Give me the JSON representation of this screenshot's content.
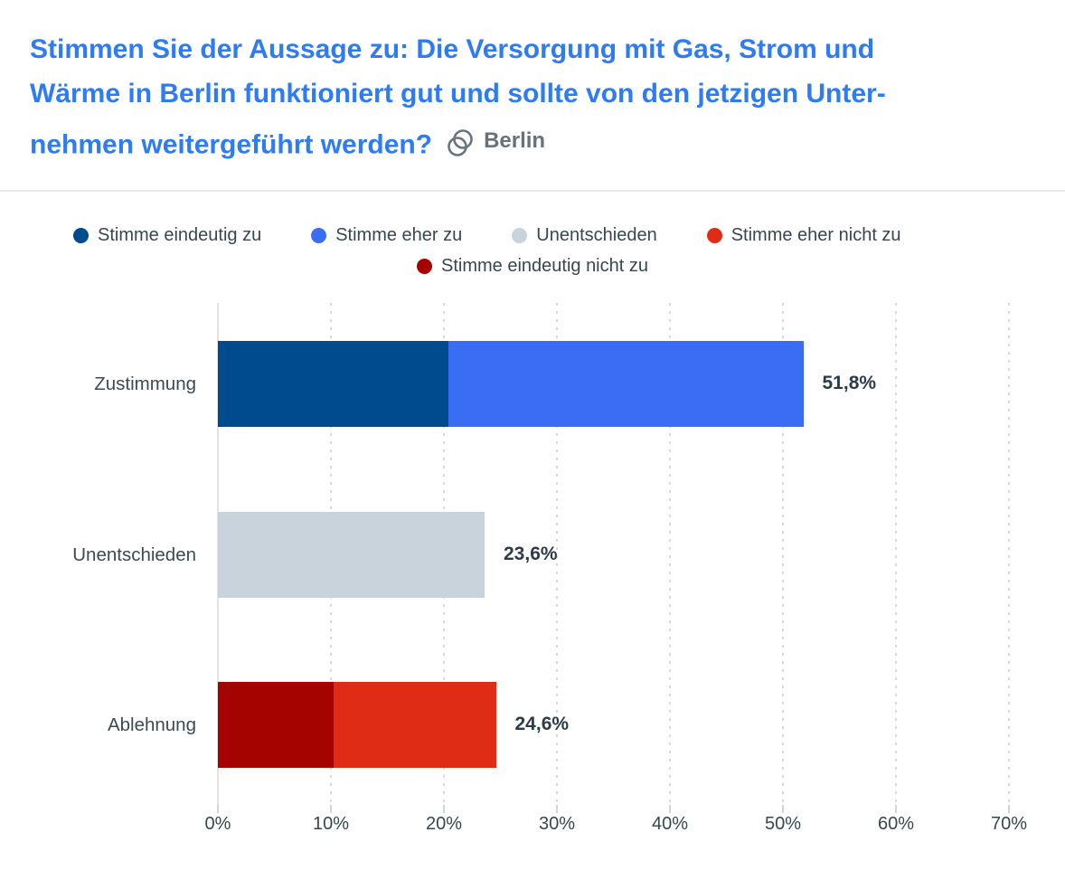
{
  "header": {
    "title_lines": [
      "Stimmen Sie der Aussage zu: Die Versorgung mit Gas, Strom und",
      "Wärme in Berlin funktioniert gut und sollte von den jetzigen Unter-",
      "nehmen weitergeführt werden?"
    ],
    "region_label": "Berlin",
    "title_color": "#2e7bf6",
    "region_color": "#68727c"
  },
  "chart_data": {
    "type": "bar",
    "orientation": "horizontal",
    "stacked": true,
    "xlim": [
      0,
      70
    ],
    "grid": "dotted-vertical",
    "legend_position": "top",
    "x_ticks": [
      {
        "label": "0%",
        "value": 0
      },
      {
        "label": "10%",
        "value": 10
      },
      {
        "label": "20%",
        "value": 20
      },
      {
        "label": "30%",
        "value": 30
      },
      {
        "label": "40%",
        "value": 40
      },
      {
        "label": "50%",
        "value": 50
      },
      {
        "label": "60%",
        "value": 60
      },
      {
        "label": "70%",
        "value": 70
      }
    ],
    "legend": [
      {
        "name": "Stimme eindeutig zu",
        "color": "#004a8e",
        "row": 1
      },
      {
        "name": "Stimme eher zu",
        "color": "#3b6df4",
        "row": 1
      },
      {
        "name": "Unentschieden",
        "color": "#c8d3dc",
        "row": 1
      },
      {
        "name": "Stimme eher nicht zu",
        "color": "#de2c15",
        "row": 1
      },
      {
        "name": "Stimme eindeutig nicht zu",
        "color": "#a50300",
        "row": 2
      }
    ],
    "rows": [
      {
        "category": "Zustimmung",
        "total": 51.8,
        "total_label": "51,8%",
        "segments": [
          {
            "series": "Stimme eindeutig zu",
            "value": 20.4
          },
          {
            "series": "Stimme eher zu",
            "value": 31.4
          }
        ]
      },
      {
        "category": "Unentschieden",
        "total": 23.6,
        "total_label": "23,6%",
        "segments": [
          {
            "series": "Unentschieden",
            "value": 23.6
          }
        ]
      },
      {
        "category": "Ablehnung",
        "total": 24.6,
        "total_label": "24,6%",
        "segments": [
          {
            "series": "Stimme eindeutig nicht zu",
            "value": 10.2
          },
          {
            "series": "Stimme eher nicht zu",
            "value": 14.4
          }
        ]
      }
    ]
  },
  "colors": {
    "axis_text": "#37474f",
    "grid": "#d9d9d9",
    "divider": "#e7e7e7",
    "value_label": "#2c3b49"
  }
}
